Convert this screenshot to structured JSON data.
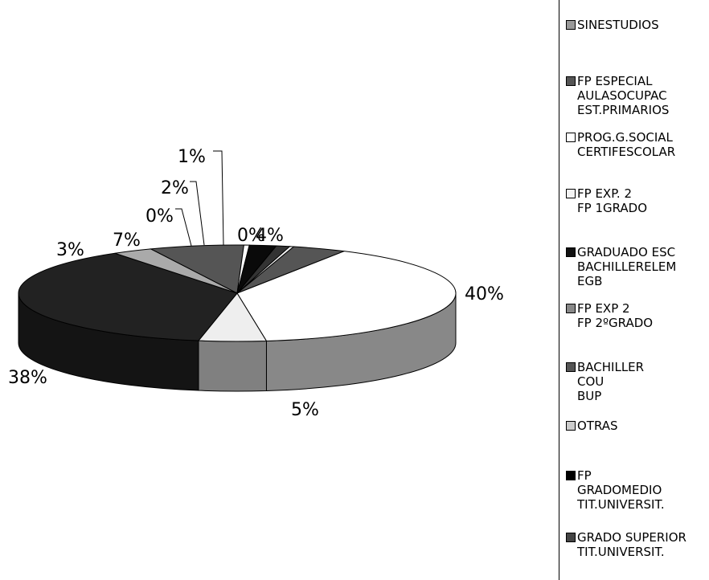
{
  "chart_data": {
    "type": "pie",
    "title": "",
    "slices": [
      {
        "label": "SINESTUDIOS",
        "value": 4,
        "pct_label": "4%",
        "color": "#555555",
        "side": "#444444"
      },
      {
        "label": "FP ESPECIAL / AULASOCUPAC / EST.PRIMARIOS",
        "value": 40,
        "pct_label": "40%",
        "color": "#ffffff",
        "side": "#888888"
      },
      {
        "label": "FP EXP 2 / FP 2ºGRADO",
        "value": 5,
        "pct_label": "5%",
        "color": "#eeeeee",
        "side": "#808080"
      },
      {
        "label": "GRADUADO ESC / BACHILLERELEM / EGB",
        "value": 38,
        "pct_label": "38%",
        "color": "#222222",
        "side": "#141414"
      },
      {
        "label": "OTRAS",
        "value": 3,
        "pct_label": "3%",
        "color": "#aaaaaa",
        "side": "#777777"
      },
      {
        "label": "BACHILLER / COU / BUP",
        "value": 7,
        "pct_label": "7%",
        "color": "#555555",
        "side": "#3c3c3c"
      },
      {
        "label": "PROG.G.SOCIAL / CERTIFESCOLAR",
        "value": 0.4,
        "pct_label": "0%",
        "color": "#ffffff",
        "side": "#bbbbbb"
      },
      {
        "label": "FP GRADOMEDIO / TIT.UNIVERSIT.",
        "value": 2,
        "pct_label": "2%",
        "color": "#0a0a0a",
        "side": "#000000"
      },
      {
        "label": "GRADO SUPERIOR / TIT.UNIVERSIT.",
        "value": 1,
        "pct_label": "1%",
        "color": "#333333",
        "side": "#222222"
      },
      {
        "label": "FP EXP. 2 / FP 1GRADO",
        "value": 0.3,
        "pct_label": "0%",
        "color": "#f4f4f4",
        "side": "#cccccc"
      }
    ],
    "legend_position": "right",
    "legend": [
      {
        "lines": [
          "SINESTUDIOS"
        ],
        "color": "#999999"
      },
      {
        "lines": [
          "FP ESPECIAL",
          "AULASOCUPAC",
          "EST.PRIMARIOS"
        ],
        "color": "#555555"
      },
      {
        "lines": [
          "PROG.G.SOCIAL",
          "CERTIFESCOLAR"
        ],
        "color": "#ffffff"
      },
      {
        "lines": [
          "FP EXP. 2",
          "FP 1GRADO"
        ],
        "color": "#f4f4f4"
      },
      {
        "lines": [
          "GRADUADO ESC",
          "BACHILLERELEM",
          "EGB"
        ],
        "color": "#111111"
      },
      {
        "lines": [
          "FP EXP 2",
          "FP 2ºGRADO"
        ],
        "color": "#888888"
      },
      {
        "lines": [
          "BACHILLER",
          "COU",
          "BUP"
        ],
        "color": "#555555"
      },
      {
        "lines": [
          "OTRAS"
        ],
        "color": "#cccccc"
      },
      {
        "lines": [
          "FP",
          "GRADOMEDIO",
          "TIT.UNIVERSIT."
        ],
        "color": "#000000"
      },
      {
        "lines": [
          "GRADO SUPERIOR",
          "TIT.UNIVERSIT."
        ],
        "color": "#444444"
      }
    ]
  }
}
